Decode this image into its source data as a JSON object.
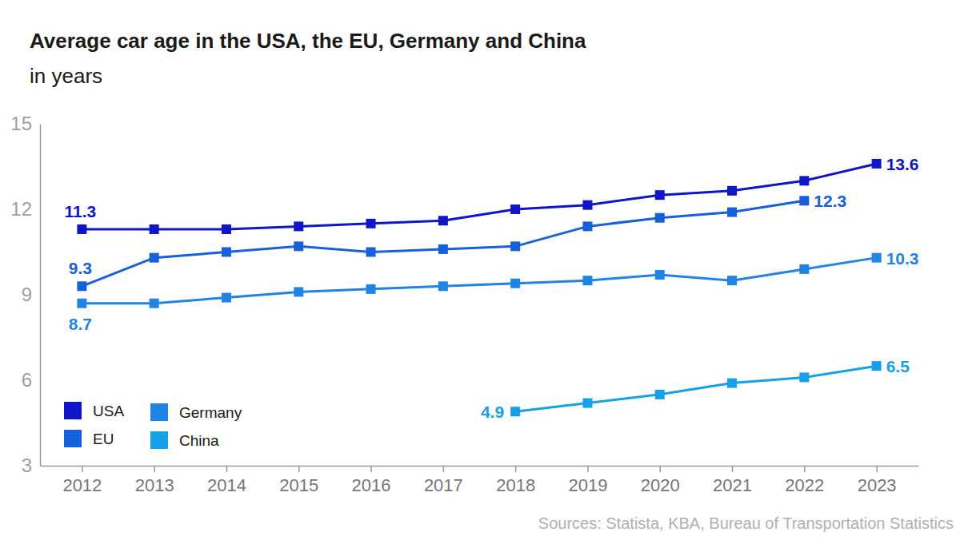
{
  "chart_data": {
    "type": "line",
    "title": "Average car age in the USA, the EU, Germany and China",
    "subtitle": "in years",
    "source": "Sources: Statista, KBA, Bureau of Transportation Statistics",
    "categories": [
      "2012",
      "2013",
      "2014",
      "2015",
      "2016",
      "2017",
      "2018",
      "2019",
      "2020",
      "2021",
      "2022",
      "2023"
    ],
    "ylim": [
      3,
      15
    ],
    "yticks": [
      3,
      6,
      9,
      12,
      15
    ],
    "grid": false,
    "legend": "bottom-left",
    "data_labels": true,
    "marker": "square",
    "series": [
      {
        "name": "USA",
        "color": "#1016c8",
        "values": [
          11.3,
          11.3,
          11.3,
          11.4,
          11.5,
          11.6,
          12.0,
          12.15,
          12.5,
          12.65,
          13.0,
          13.6
        ],
        "value_labels": [
          "11.3",
          null,
          null,
          null,
          null,
          null,
          null,
          null,
          null,
          null,
          null,
          "13.6"
        ]
      },
      {
        "name": "EU",
        "color": "#1660dc",
        "values": [
          9.3,
          10.3,
          10.5,
          10.7,
          10.5,
          10.6,
          10.7,
          11.4,
          11.7,
          11.9,
          12.3,
          null
        ],
        "value_labels": [
          "9.3",
          null,
          null,
          null,
          null,
          null,
          null,
          null,
          null,
          null,
          "12.3",
          null
        ]
      },
      {
        "name": "Germany",
        "color": "#1f84e3",
        "values": [
          8.7,
          8.7,
          8.9,
          9.1,
          9.2,
          9.3,
          9.4,
          9.5,
          9.7,
          9.5,
          9.9,
          10.3
        ],
        "value_labels": [
          "8.7",
          null,
          null,
          null,
          null,
          null,
          null,
          null,
          null,
          null,
          null,
          "10.3"
        ]
      },
      {
        "name": "China",
        "color": "#16a0e8",
        "values": [
          null,
          null,
          null,
          null,
          null,
          null,
          4.9,
          5.2,
          5.5,
          5.9,
          6.1,
          6.5
        ],
        "value_labels": [
          null,
          null,
          null,
          null,
          null,
          null,
          "4.9",
          null,
          null,
          null,
          null,
          "6.5"
        ]
      }
    ]
  }
}
